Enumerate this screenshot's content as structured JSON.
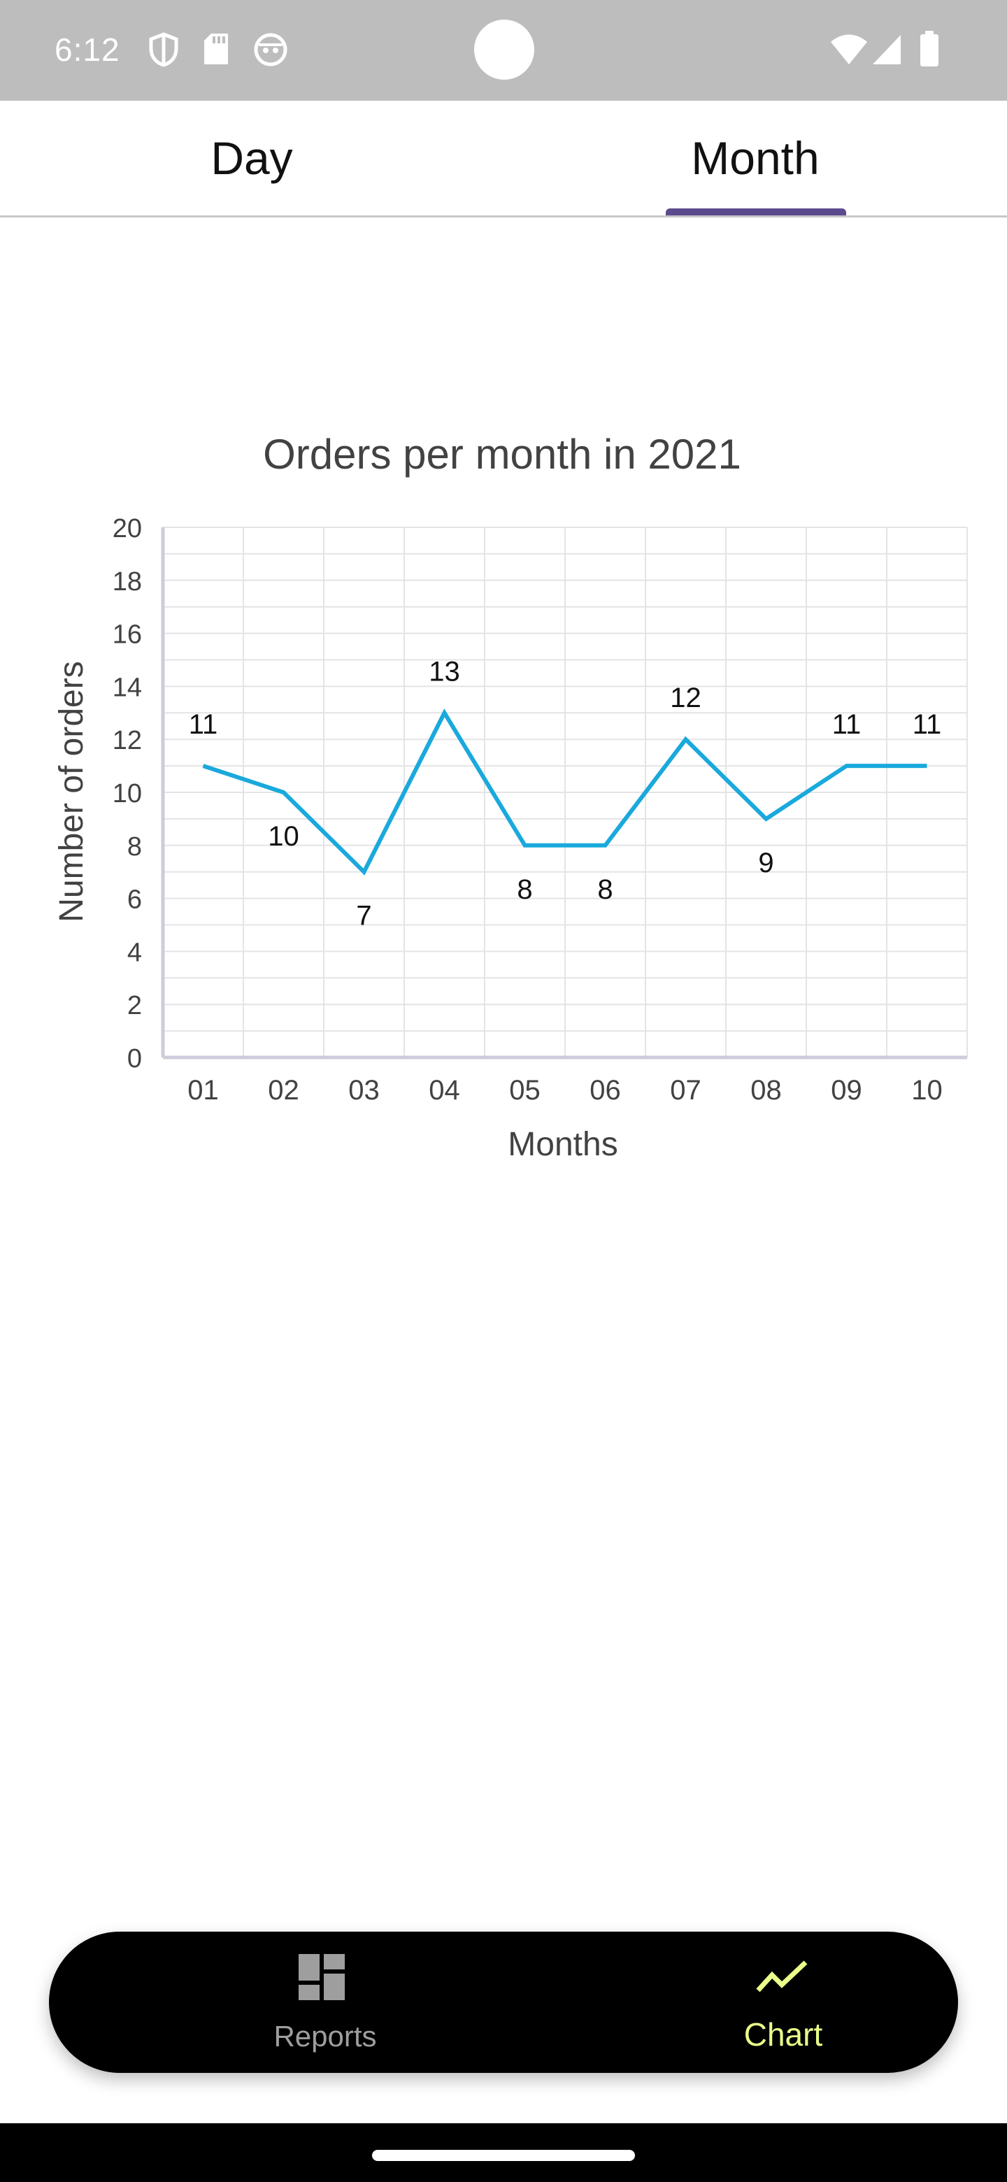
{
  "status_bar": {
    "time": "6:12"
  },
  "tabs": {
    "day_label": "Day",
    "month_label": "Month",
    "selected": "Month"
  },
  "chart_data": {
    "type": "line",
    "title": "Orders per month in 2021",
    "xlabel": "Months",
    "ylabel": "Number of orders",
    "categories": [
      "01",
      "02",
      "03",
      "04",
      "05",
      "06",
      "07",
      "08",
      "09",
      "10"
    ],
    "values": [
      11,
      10,
      7,
      13,
      8,
      8,
      12,
      9,
      11,
      11
    ],
    "ylim": [
      0,
      20
    ],
    "yticks": [
      0,
      2,
      4,
      6,
      8,
      10,
      12,
      14,
      16,
      18,
      20
    ],
    "grid": true,
    "line_color": "#1aa9dc"
  },
  "bottom_nav": {
    "reports_label": "Reports",
    "chart_label": "Chart",
    "active": "Chart",
    "active_color": "#e8ff8a",
    "inactive_color": "#9e9e9e"
  }
}
